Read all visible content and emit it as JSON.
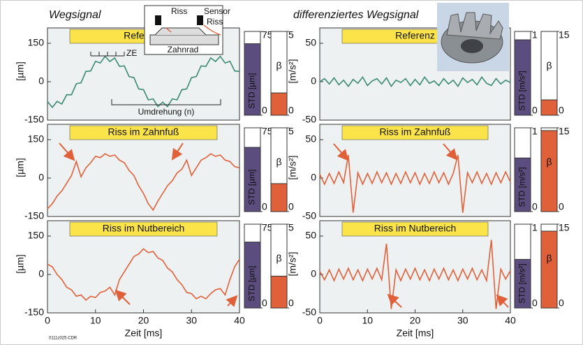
{
  "left_title": "Wegsignal",
  "right_title": "differenziertes Wegsignal",
  "inset": {
    "crack_top": "Riss",
    "sensor": "Sensor",
    "crack_right": "Riss",
    "gear": "Zahnrad"
  },
  "annotations": {
    "ze": "ZE",
    "revolution": "Umdrehung (n)"
  },
  "file_label": "0111z025.CDR",
  "chart_data": [
    {
      "type": "line",
      "title": "Referenz",
      "ylabel": "[µm]",
      "x": [
        0,
        1,
        2,
        3,
        4,
        5,
        6,
        7,
        8,
        9,
        10,
        11,
        12,
        13,
        14,
        15,
        16,
        17,
        18,
        19,
        20,
        21,
        22,
        23,
        24,
        25,
        26,
        27,
        28,
        29,
        30,
        31,
        32,
        33,
        34,
        35,
        36,
        37,
        38,
        39,
        40
      ],
      "xlim": [
        0,
        40
      ],
      "ylim": [
        -150,
        210
      ],
      "yticks": [
        -150,
        0,
        150
      ],
      "series": [
        {
          "color": "#3a8a70",
          "values": [
            -77,
            -100,
            -77,
            -87,
            -51,
            -51,
            -8,
            -4,
            40,
            42,
            80,
            73,
            99,
            79,
            93,
            60,
            62,
            20,
            16,
            -28,
            -31,
            -71,
            -67,
            -97,
            -80,
            -97,
            -67,
            -71,
            -31,
            -28,
            16,
            20,
            62,
            60,
            93,
            79,
            99,
            73,
            80,
            42,
            40
          ]
        }
      ],
      "gauges": [
        {
          "label": "STD [µm]",
          "value": 64,
          "ylim": [
            0,
            75
          ],
          "yticks": [
            0,
            75
          ],
          "color": "#5b4e7e"
        },
        {
          "label": "β",
          "value": 1.33,
          "ylim": [
            0,
            5
          ],
          "yticks": [
            0,
            5
          ],
          "color": "#e0603a"
        }
      ]
    },
    {
      "type": "line",
      "title": "Riss im Zahnfuß",
      "ylabel": "[µm]",
      "x": [
        0,
        1,
        2,
        3,
        4,
        5,
        6,
        7,
        8,
        9,
        10,
        11,
        12,
        13,
        14,
        15,
        16,
        17,
        18,
        19,
        20,
        21,
        22,
        23,
        24,
        25,
        26,
        27,
        28,
        29,
        30,
        31,
        32,
        33,
        34,
        35,
        36,
        37,
        38,
        39,
        40
      ],
      "xlim": [
        0,
        40
      ],
      "ylim": [
        -150,
        210
      ],
      "yticks": [
        -150,
        0,
        150
      ],
      "series": [
        {
          "color": "#e0603a",
          "values": [
            -120,
            -100,
            -70,
            -50,
            -20,
            10,
            65,
            5,
            40,
            60,
            85,
            80,
            95,
            85,
            90,
            70,
            60,
            30,
            10,
            -30,
            -60,
            -100,
            -125,
            -90,
            -60,
            -30,
            -10,
            20,
            35,
            70,
            10,
            40,
            70,
            80,
            95,
            85,
            90,
            70,
            65,
            45,
            40
          ]
        }
      ],
      "gauges": [
        {
          "label": "STD [µm]",
          "value": 57.5,
          "ylim": [
            0,
            75
          ],
          "yticks": [
            0,
            75
          ],
          "color": "#5b4e7e"
        },
        {
          "label": "β",
          "value": 1.67,
          "ylim": [
            0,
            5
          ],
          "yticks": [
            0,
            5
          ],
          "color": "#e0603a"
        }
      ]
    },
    {
      "type": "line",
      "title": "Riss im Nutbereich",
      "ylabel": "[µm]",
      "xlabel": "Zeit  [ms]",
      "x": [
        0,
        1,
        2,
        3,
        4,
        5,
        6,
        7,
        8,
        9,
        10,
        11,
        12,
        13,
        14,
        15,
        16,
        17,
        18,
        19,
        20,
        21,
        22,
        23,
        24,
        25,
        26,
        27,
        28,
        29,
        30,
        31,
        32,
        33,
        34,
        35,
        36,
        37,
        38,
        39,
        40
      ],
      "xlim": [
        0,
        40
      ],
      "xticks": [
        0,
        10,
        20,
        30,
        40
      ],
      "ylim": [
        -150,
        210
      ],
      "yticks": [
        -150,
        0,
        150
      ],
      "series": [
        {
          "color": "#e0603a",
          "values": [
            40,
            30,
            0,
            -20,
            -50,
            -60,
            -85,
            -80,
            -100,
            -85,
            -90,
            -70,
            -65,
            -50,
            -80,
            -20,
            10,
            40,
            70,
            80,
            100,
            85,
            90,
            65,
            55,
            25,
            10,
            -20,
            -40,
            -70,
            -75,
            -95,
            -85,
            -95,
            -75,
            -60,
            -55,
            -80,
            -20,
            30,
            60
          ]
        }
      ],
      "gauges": [
        {
          "label": "STD [µm]",
          "value": 59,
          "ylim": [
            0,
            75
          ],
          "yticks": [
            0,
            75
          ],
          "color": "#5b4e7e"
        },
        {
          "label": "β",
          "value": 1.9,
          "ylim": [
            0,
            5
          ],
          "yticks": [
            0,
            5
          ],
          "color": "#e0603a"
        }
      ]
    },
    {
      "type": "line",
      "title": "Referenz",
      "ylabel": "[m/s²]",
      "x": [
        0,
        1,
        2,
        3,
        4,
        5,
        6,
        7,
        8,
        9,
        10,
        11,
        12,
        13,
        14,
        15,
        16,
        17,
        18,
        19,
        20,
        21,
        22,
        23,
        24,
        25,
        26,
        27,
        28,
        29,
        30,
        31,
        32,
        33,
        34,
        35,
        36,
        37,
        38,
        39,
        40
      ],
      "xlim": [
        0,
        40
      ],
      "ylim": [
        -50,
        70
      ],
      "yticks": [
        -50,
        0,
        50
      ],
      "series": [
        {
          "color": "#3a8a70",
          "values": [
            0,
            4,
            -3,
            5,
            -4,
            2,
            -6,
            3,
            -2,
            6,
            -5,
            1,
            4,
            -3,
            5,
            -6,
            2,
            -1,
            4,
            -5,
            3,
            -4,
            6,
            -2,
            1,
            -5,
            4,
            -3,
            2,
            -6,
            5,
            -1,
            3,
            -4,
            6,
            -2,
            -5,
            4,
            -3,
            2,
            -1
          ]
        }
      ],
      "gauges": [
        {
          "label": "STD [m/s²]",
          "value": 0.9,
          "ylim": [
            0,
            1
          ],
          "yticks": [
            0,
            1
          ],
          "color": "#5b4e7e"
        },
        {
          "label": "β",
          "value": 2.75,
          "ylim": [
            0,
            15
          ],
          "yticks": [
            0,
            15
          ],
          "color": "#e0603a"
        }
      ]
    },
    {
      "type": "line",
      "title": "Riss im Zahnfuß",
      "ylabel": "[m/s²]",
      "x": [
        0,
        1,
        2,
        3,
        4,
        5,
        6,
        7,
        8,
        9,
        10,
        11,
        12,
        13,
        14,
        15,
        16,
        17,
        18,
        19,
        20,
        21,
        22,
        23,
        24,
        25,
        26,
        27,
        28,
        29,
        30,
        31,
        32,
        33,
        34,
        35,
        36,
        37,
        38,
        39,
        40
      ],
      "xlim": [
        0,
        40
      ],
      "ylim": [
        -50,
        70
      ],
      "yticks": [
        -50,
        0,
        50
      ],
      "series": [
        {
          "color": "#e0603a",
          "values": [
            5,
            -8,
            6,
            -7,
            8,
            -6,
            30,
            -45,
            7,
            -8,
            6,
            -7,
            8,
            -6,
            7,
            -8,
            6,
            -7,
            8,
            -6,
            7,
            -8,
            6,
            -7,
            8,
            -6,
            7,
            -8,
            6,
            30,
            -45,
            7,
            -6,
            8,
            -7,
            6,
            -8,
            7,
            -6,
            8,
            -5
          ]
        }
      ],
      "gauges": [
        {
          "label": "STD [m/s²]",
          "value": 0.64,
          "ylim": [
            0,
            1
          ],
          "yticks": [
            0,
            1
          ],
          "color": "#5b4e7e"
        },
        {
          "label": "β",
          "value": 14.5,
          "ylim": [
            0,
            15
          ],
          "yticks": [
            0,
            15
          ],
          "color": "#e0603a"
        }
      ]
    },
    {
      "type": "line",
      "title": "Riss im Nutbereich",
      "ylabel": "[m/s²]",
      "xlabel": "Zeit  [ms]",
      "x": [
        0,
        1,
        2,
        3,
        4,
        5,
        6,
        7,
        8,
        9,
        10,
        11,
        12,
        13,
        14,
        15,
        16,
        17,
        18,
        19,
        20,
        21,
        22,
        23,
        24,
        25,
        26,
        27,
        28,
        29,
        30,
        31,
        32,
        33,
        34,
        35,
        36,
        37,
        38,
        39,
        40
      ],
      "xlim": [
        0,
        40
      ],
      "xticks": [
        0,
        10,
        20,
        30,
        40
      ],
      "ylim": [
        -50,
        70
      ],
      "yticks": [
        -50,
        0,
        50
      ],
      "series": [
        {
          "color": "#e0603a",
          "values": [
            4,
            -7,
            6,
            -8,
            7,
            -6,
            8,
            -7,
            6,
            -8,
            7,
            -6,
            8,
            -7,
            40,
            -45,
            6,
            -8,
            7,
            -6,
            8,
            -7,
            6,
            -8,
            7,
            -6,
            8,
            -7,
            6,
            -8,
            7,
            -6,
            8,
            -7,
            6,
            -8,
            45,
            -45,
            7,
            -6,
            5
          ]
        }
      ],
      "gauges": [
        {
          "label": "STD [m/s²]",
          "value": 0.58,
          "ylim": [
            0,
            1
          ],
          "yticks": [
            0,
            1
          ],
          "color": "#5b4e7e"
        },
        {
          "label": "β",
          "value": 13.75,
          "ylim": [
            0,
            15
          ],
          "yticks": [
            0,
            15
          ],
          "color": "#e0603a"
        }
      ]
    }
  ]
}
